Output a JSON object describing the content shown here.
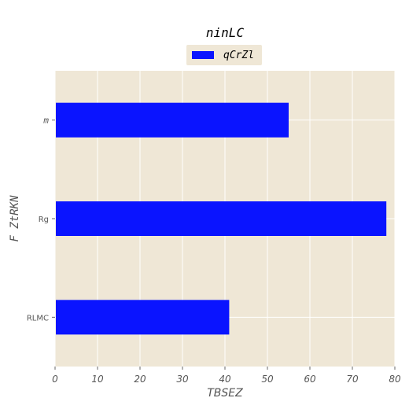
{
  "chart_data": {
    "type": "bar",
    "orientation": "horizontal",
    "title": "ninLC",
    "xlabel": "TBSEZ",
    "ylabel": "F ZtRKN",
    "categories": [
      "m",
      "Rg",
      "RLMC"
    ],
    "series": [
      {
        "name": "qCrZl",
        "values": [
          55,
          78,
          41
        ]
      }
    ],
    "xlim": [
      0,
      80
    ],
    "xticks": [
      0,
      10,
      20,
      30,
      40,
      50,
      60,
      70,
      80
    ],
    "grid": true,
    "legend": "top-center",
    "colors": {
      "bar": "#0a14ff",
      "plot_bg": "#efe7d6",
      "grid": "#ffffff",
      "legend_bg": "#efe7d6"
    }
  }
}
